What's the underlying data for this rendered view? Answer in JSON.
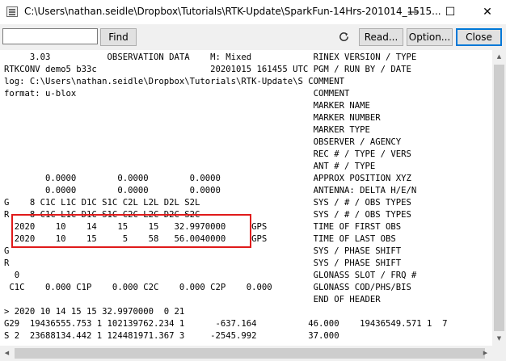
{
  "window": {
    "title": "C:\\Users\\nathan.seidle\\Dropbox\\Tutorials\\RTK-Update\\SparkFun-14Hrs-201014_1515...",
    "minimize": "—",
    "maximize": "☐",
    "close": "✕"
  },
  "toolbar": {
    "find_value": "",
    "find_label": "Find",
    "refresh_icon": "refresh-icon",
    "read_label": "Read...",
    "option_label": "Option...",
    "close_label": "Close"
  },
  "lines": [
    "     3.03           OBSERVATION DATA    M: Mixed            RINEX VERSION / TYPE",
    "RTKCONV demo5 b33c                      20201015 161455 UTC PGM / RUN BY / DATE",
    "log: C:\\Users\\nathan.seidle\\Dropbox\\Tutorials\\RTK-Update\\S COMMENT",
    "format: u-blox                                              COMMENT",
    "                                                            MARKER NAME",
    "                                                            MARKER NUMBER",
    "                                                            MARKER TYPE",
    "                                                            OBSERVER / AGENCY",
    "                                                            REC # / TYPE / VERS",
    "                                                            ANT # / TYPE",
    "        0.0000        0.0000        0.0000                  APPROX POSITION XYZ",
    "        0.0000        0.0000        0.0000                  ANTENNA: DELTA H/E/N",
    "G    8 C1C L1C D1C S1C C2L L2L D2L S2L                      SYS / # / OBS TYPES",
    "R    8 C1C L1C D1C S1C C2C L2C D2C S2C                      SYS / # / OBS TYPES",
    "  2020    10    14    15    15   32.9970000     GPS         TIME OF FIRST OBS",
    "  2020    10    15     5    58   56.0040000     GPS         TIME OF LAST OBS",
    "G                                                           SYS / PHASE SHIFT",
    "R                                                           SYS / PHASE SHIFT",
    "  0                                                         GLONASS SLOT / FRQ #",
    " C1C    0.000 C1P    0.000 C2C    0.000 C2P    0.000        GLONASS COD/PHS/BIS",
    "                                                            END OF HEADER",
    "> 2020 10 14 15 15 32.9970000  0 21",
    "G29  19436555.753 1 102139762.234 1      -637.164          46.000    19436549.571 1  7",
    "S 2  23688134.442 1 124481971.367 3     -2545.992          37.000"
  ]
}
